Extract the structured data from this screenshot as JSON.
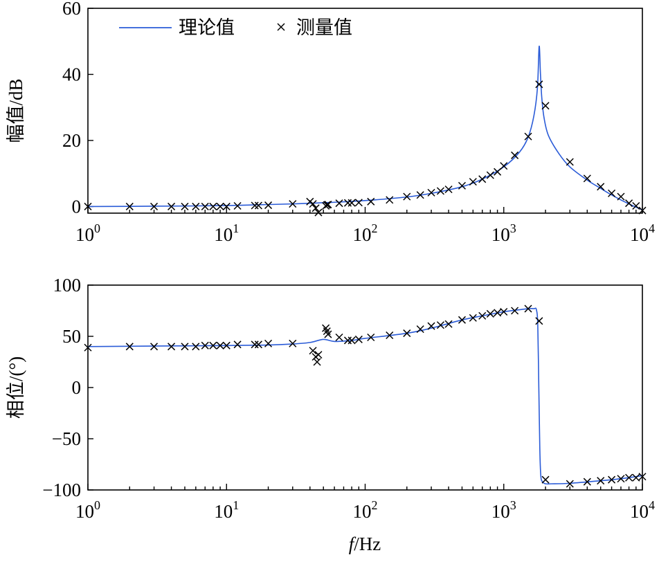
{
  "chart_data": [
    {
      "type": "line",
      "xscale": "log",
      "xlim": [
        1,
        10000
      ],
      "ylim": [
        -2,
        60
      ],
      "ylabel": "幅值/dB",
      "yticks": [
        0,
        20,
        40,
        60
      ],
      "yticklabels": [
        "0",
        "20",
        "40",
        "60"
      ],
      "xtick_exponents": [
        "0",
        "1",
        "2",
        "3",
        "4"
      ],
      "legend": {
        "location": "top-left",
        "theory_label": "理论值",
        "measured_label": "测量值"
      },
      "series": [
        {
          "name": "理论值",
          "kind": "line",
          "x": [
            1,
            3,
            10,
            30,
            60,
            100,
            200,
            300,
            500,
            700,
            1000,
            1300,
            1500,
            1650,
            1750,
            1800,
            1840,
            1880,
            1950,
            2100,
            2500,
            3000,
            4000,
            5000,
            6000,
            7000,
            8000,
            9000,
            10000
          ],
          "y": [
            0,
            0.1,
            0.3,
            0.8,
            1.3,
            1.8,
            2.9,
            4.0,
            6.0,
            8.3,
            12.0,
            16.5,
            21.0,
            27.5,
            36.0,
            48.5,
            40.0,
            33.0,
            27.0,
            21.5,
            16.0,
            12.0,
            8.0,
            5.5,
            3.5,
            2.0,
            0.8,
            -0.2,
            -1.0
          ]
        },
        {
          "name": "测量值",
          "kind": "scatter",
          "x": [
            1,
            2,
            3,
            4,
            5,
            6,
            7,
            8,
            9,
            10,
            12,
            16,
            17,
            20,
            30,
            40,
            42,
            44,
            46,
            52,
            53,
            54,
            65,
            75,
            80,
            90,
            110,
            150,
            200,
            250,
            300,
            350,
            400,
            500,
            600,
            700,
            800,
            900,
            1000,
            1200,
            1500,
            1800,
            2000,
            3000,
            4000,
            5000,
            6000,
            7000,
            8000,
            9000,
            10000
          ],
          "y": [
            0,
            0,
            0,
            0,
            0,
            0,
            0,
            0,
            0,
            0,
            0.2,
            0.3,
            0.3,
            0.4,
            0.8,
            1.5,
            0.8,
            -0.5,
            -1.8,
            0.2,
            0.5,
            0.6,
            1.0,
            1.1,
            1.1,
            1.2,
            1.5,
            2.0,
            3.0,
            3.5,
            4.2,
            4.7,
            5.2,
            6.3,
            7.5,
            8.3,
            9.5,
            10.5,
            12.3,
            15.5,
            21.2,
            37.0,
            30.5,
            13.5,
            8.5,
            6.0,
            4.0,
            3.0,
            1.0,
            0.2,
            -1.2
          ]
        }
      ]
    },
    {
      "type": "line",
      "xscale": "log",
      "xlim": [
        1,
        10000
      ],
      "ylim": [
        -100,
        100
      ],
      "xlabel_italic": "f",
      "xlabel_rest": "/Hz",
      "ylabel": "相位/(°)",
      "yticks": [
        -100,
        -50,
        0,
        50,
        100
      ],
      "yticklabels": [
        "−100",
        "−50",
        "0",
        "50",
        "100"
      ],
      "xtick_exponents": [
        "0",
        "1",
        "2",
        "3",
        "4"
      ],
      "series": [
        {
          "name": "理论值",
          "kind": "line",
          "x": [
            1,
            3,
            10,
            20,
            30,
            40,
            50,
            60,
            80,
            100,
            200,
            300,
            500,
            700,
            1000,
            1300,
            1500,
            1650,
            1720,
            1760,
            1790,
            1820,
            1850,
            1900,
            2000,
            2200,
            3000,
            5000,
            7000,
            10000
          ],
          "y": [
            40,
            40.5,
            41,
            41.5,
            42.5,
            44,
            47,
            45,
            46,
            48,
            53,
            58,
            66,
            70,
            74,
            76,
            77,
            77,
            76,
            60,
            0,
            -60,
            -86,
            -92,
            -94,
            -94,
            -93.5,
            -91,
            -89,
            -86
          ]
        },
        {
          "name": "测量值",
          "kind": "scatter",
          "x": [
            1,
            2,
            3,
            4,
            5,
            6,
            7,
            8,
            9,
            10,
            12,
            16,
            17,
            20,
            30,
            42,
            44,
            45,
            46,
            52,
            53,
            54,
            65,
            75,
            80,
            90,
            110,
            150,
            200,
            250,
            300,
            350,
            400,
            500,
            600,
            700,
            800,
            900,
            1000,
            1200,
            1500,
            1800,
            2000,
            3000,
            4000,
            5000,
            6000,
            7000,
            8000,
            9000,
            10000
          ],
          "y": [
            39,
            40,
            40,
            40,
            40,
            40,
            41,
            41,
            41,
            41,
            42,
            42,
            42,
            43,
            43,
            36,
            30,
            25,
            32,
            58,
            55,
            52,
            49,
            46,
            46,
            47,
            49,
            51,
            53,
            57,
            60,
            61,
            62,
            66,
            68,
            70,
            72,
            73,
            74,
            75,
            77,
            65,
            -90,
            -94,
            -92,
            -91,
            -90,
            -89,
            -88,
            -88,
            -87
          ]
        }
      ]
    }
  ]
}
